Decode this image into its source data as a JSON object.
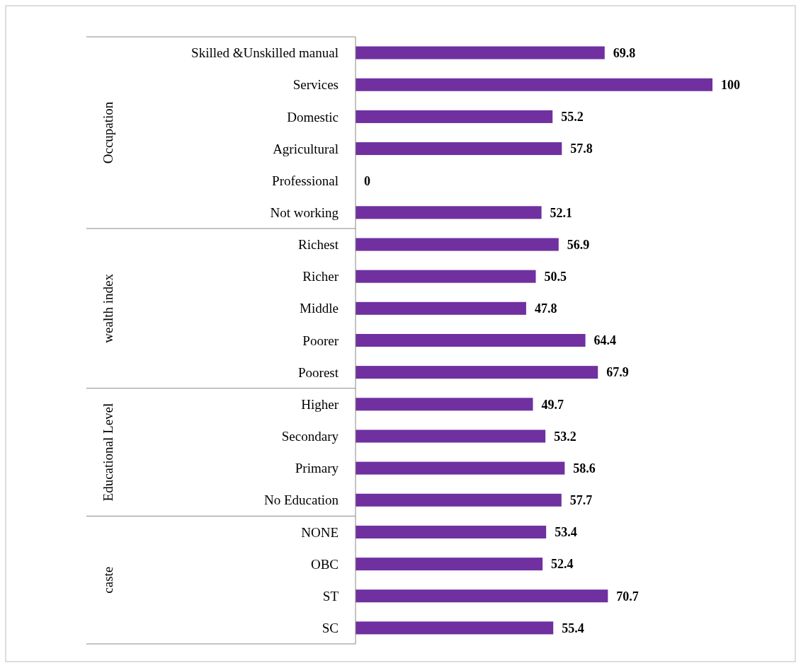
{
  "chart_data": {
    "type": "bar",
    "orientation": "horizontal",
    "data_labels": true,
    "categories": [
      "Skilled &Unskilled manual",
      "Services",
      "Domestic",
      "Agricultural",
      "Professional",
      "Not working",
      "Richest",
      "Richer",
      "Middle",
      "Poorer",
      "Poorest",
      "Higher",
      "Secondary",
      "Primary",
      "No Education",
      "NONE",
      "OBC",
      "ST",
      "SC"
    ],
    "values": [
      69.8,
      100,
      55.2,
      57.8,
      0,
      52.1,
      56.9,
      50.5,
      47.8,
      64.4,
      67.9,
      49.7,
      53.2,
      58.6,
      57.7,
      53.4,
      52.4,
      70.7,
      55.4
    ],
    "color": "#7030a0",
    "annotations": [
      "Occupation",
      "wealth index",
      "Educational Level",
      "caste"
    ]
  }
}
